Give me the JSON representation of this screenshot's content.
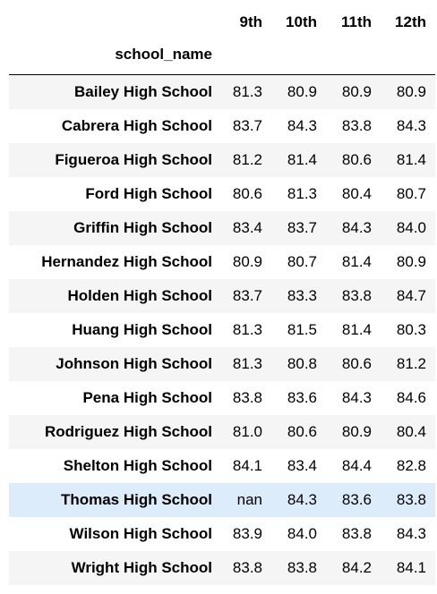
{
  "table": {
    "columns": [
      "9th",
      "10th",
      "11th",
      "12th"
    ],
    "index_name": "school_name",
    "highlighted_row": "Thomas High School",
    "rows": [
      {
        "school": "Bailey High School",
        "values": [
          "81.3",
          "80.9",
          "80.9",
          "80.9"
        ]
      },
      {
        "school": "Cabrera High School",
        "values": [
          "83.7",
          "84.3",
          "83.8",
          "84.3"
        ]
      },
      {
        "school": "Figueroa High School",
        "values": [
          "81.2",
          "81.4",
          "80.6",
          "81.4"
        ]
      },
      {
        "school": "Ford High School",
        "values": [
          "80.6",
          "81.3",
          "80.4",
          "80.7"
        ]
      },
      {
        "school": "Griffin High School",
        "values": [
          "83.4",
          "83.7",
          "84.3",
          "84.0"
        ]
      },
      {
        "school": "Hernandez High School",
        "values": [
          "80.9",
          "80.7",
          "81.4",
          "80.9"
        ]
      },
      {
        "school": "Holden High School",
        "values": [
          "83.7",
          "83.3",
          "83.8",
          "84.7"
        ]
      },
      {
        "school": "Huang High School",
        "values": [
          "81.3",
          "81.5",
          "81.4",
          "80.3"
        ]
      },
      {
        "school": "Johnson High School",
        "values": [
          "81.3",
          "80.8",
          "80.6",
          "81.2"
        ]
      },
      {
        "school": "Pena High School",
        "values": [
          "83.8",
          "83.6",
          "84.3",
          "84.6"
        ]
      },
      {
        "school": "Rodriguez High School",
        "values": [
          "81.0",
          "80.6",
          "80.9",
          "80.4"
        ]
      },
      {
        "school": "Shelton High School",
        "values": [
          "84.1",
          "83.4",
          "84.4",
          "82.8"
        ]
      },
      {
        "school": "Thomas High School",
        "values": [
          "nan",
          "84.3",
          "83.6",
          "83.8"
        ]
      },
      {
        "school": "Wilson High School",
        "values": [
          "83.9",
          "84.0",
          "83.8",
          "84.3"
        ]
      },
      {
        "school": "Wright High School",
        "values": [
          "83.8",
          "83.8",
          "84.2",
          "84.1"
        ]
      }
    ]
  },
  "colors": {
    "row_stripe": "#f5f5f5",
    "row_highlight": "#dcecfb",
    "header_rule": "#000000"
  }
}
